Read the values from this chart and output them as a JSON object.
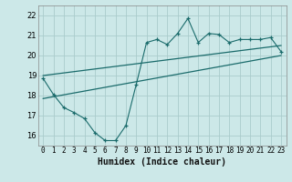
{
  "xlabel": "Humidex (Indice chaleur)",
  "bg_color": "#cce8e8",
  "grid_color": "#aacccc",
  "line_color": "#1a6b6b",
  "xlim": [
    -0.5,
    23.5
  ],
  "ylim": [
    15.5,
    22.5
  ],
  "yticks": [
    16,
    17,
    18,
    19,
    20,
    21,
    22
  ],
  "xticks": [
    0,
    1,
    2,
    3,
    4,
    5,
    6,
    7,
    8,
    9,
    10,
    11,
    12,
    13,
    14,
    15,
    16,
    17,
    18,
    19,
    20,
    21,
    22,
    23
  ],
  "main_line_x": [
    0,
    1,
    2,
    3,
    4,
    5,
    6,
    7,
    8,
    9,
    10,
    11,
    12,
    13,
    14,
    15,
    16,
    17,
    18,
    19,
    20,
    21,
    22,
    23
  ],
  "main_line_y": [
    18.85,
    18.05,
    17.4,
    17.15,
    16.85,
    16.15,
    15.75,
    15.75,
    16.5,
    18.55,
    20.65,
    20.8,
    20.55,
    21.1,
    21.85,
    20.65,
    21.1,
    21.05,
    20.65,
    20.8,
    20.8,
    20.8,
    20.9,
    20.2
  ],
  "upper_line_x": [
    0,
    23
  ],
  "upper_line_y": [
    19.0,
    20.5
  ],
  "lower_line_x": [
    0,
    23
  ],
  "lower_line_y": [
    17.85,
    20.0
  ]
}
